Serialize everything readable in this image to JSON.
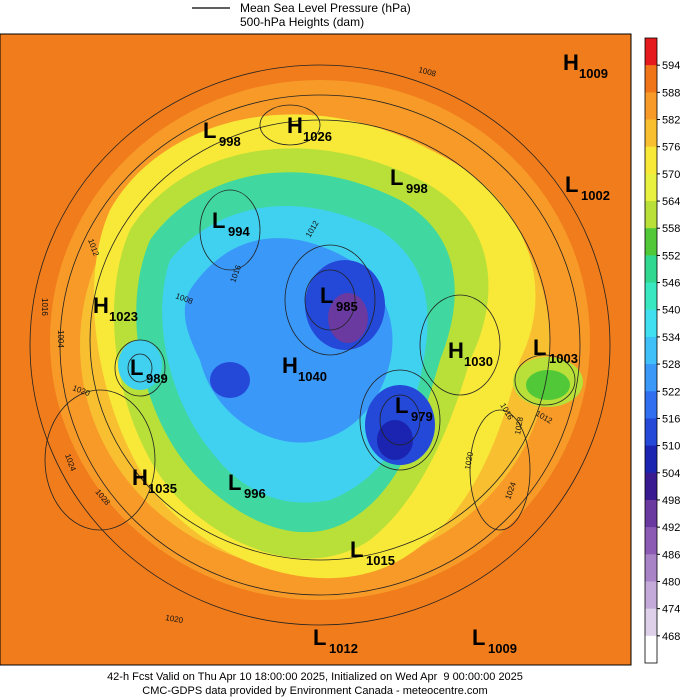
{
  "legend": [
    "Mean Sea Level Pressure (hPa)",
    "500-hPa Heights (dam)"
  ],
  "colorbar": {
    "labels": [
      594,
      588,
      582,
      576,
      570,
      564,
      558,
      552,
      546,
      540,
      534,
      528,
      522,
      516,
      510,
      504,
      498,
      492,
      486,
      480,
      474,
      468
    ],
    "colors": [
      "#e41a1c",
      "#f07418",
      "#f79a28",
      "#f8c030",
      "#f8e838",
      "#e8f040",
      "#b8e038",
      "#50c838",
      "#30d890",
      "#38e8c0",
      "#40e0f0",
      "#40c0f8",
      "#3a98f8",
      "#3070f0",
      "#2448d8",
      "#1a24b0",
      "#3a1a90",
      "#6a3aa0",
      "#8c5cb4",
      "#a884c6",
      "#c4aad8",
      "#ddd0e8",
      "#ffffff"
    ]
  },
  "centers": [
    {
      "type": "H",
      "value": 1009
    },
    {
      "type": "L",
      "value": 998
    },
    {
      "type": "H",
      "value": 1026
    },
    {
      "type": "L",
      "value": 998
    },
    {
      "type": "L",
      "value": 1002
    },
    {
      "type": "L",
      "value": 994
    },
    {
      "type": "L",
      "value": 985
    },
    {
      "type": "H",
      "value": 1023
    },
    {
      "type": "H",
      "value": 1030
    },
    {
      "type": "L",
      "value": 1003
    },
    {
      "type": "L",
      "value": 989
    },
    {
      "type": "H",
      "value": 1040
    },
    {
      "type": "L",
      "value": 979
    },
    {
      "type": "H",
      "value": 1035
    },
    {
      "type": "L",
      "value": 996
    },
    {
      "type": "L",
      "value": 1015
    },
    {
      "type": "L",
      "value": 1012
    },
    {
      "type": "L",
      "value": 1009
    }
  ],
  "isobar_labels": [
    1008,
    1012,
    1016,
    1008,
    1016,
    1012,
    1004,
    1020,
    1024,
    1028,
    1020,
    1016,
    1012,
    1028,
    1024,
    1020
  ],
  "footer": [
    "42-h Fcst Valid on Thu Apr 10 18:00:00 2025, Initialized on Wed Apr  9 00:00:00 2025",
    "CMC-GDPS data provided by Environment Canada - meteocentre.com"
  ]
}
